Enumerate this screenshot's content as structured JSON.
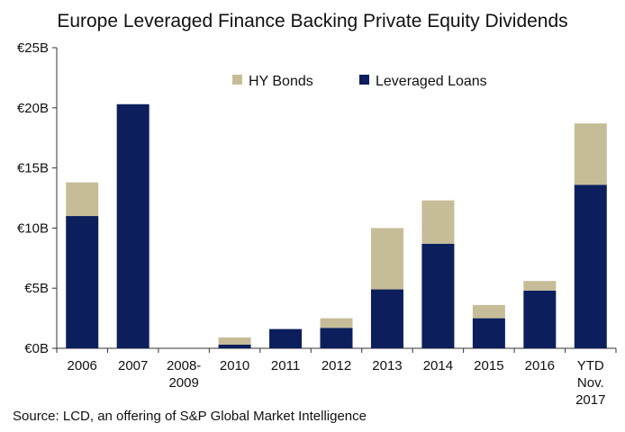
{
  "chart_data": {
    "type": "bar",
    "stacked": true,
    "title": "Europe Leveraged Finance Backing Private Equity Dividends",
    "categories": [
      "2006",
      "2007",
      "2008-2009",
      "2010",
      "2011",
      "2012",
      "2013",
      "2014",
      "2015",
      "2016",
      "YTD Nov. 2017"
    ],
    "category_lines": [
      [
        "2006"
      ],
      [
        "2007"
      ],
      [
        "2008-",
        "2009"
      ],
      [
        "2010"
      ],
      [
        "2011"
      ],
      [
        "2012"
      ],
      [
        "2013"
      ],
      [
        "2014"
      ],
      [
        "2015"
      ],
      [
        "2016"
      ],
      [
        "YTD",
        "Nov.",
        "2017"
      ]
    ],
    "series": [
      {
        "name": "Leveraged Loans",
        "color": "#0c1f5c",
        "values": [
          11.0,
          20.3,
          0,
          0.3,
          1.6,
          1.7,
          4.9,
          8.7,
          2.5,
          4.8,
          13.6
        ]
      },
      {
        "name": "HY Bonds",
        "color": "#c6bd98",
        "values": [
          2.8,
          0,
          0,
          0.6,
          0,
          0.8,
          5.1,
          3.6,
          1.1,
          0.8,
          5.1
        ]
      }
    ],
    "legend": {
      "position": "top-center",
      "order": [
        "HY Bonds",
        "Leveraged Loans"
      ]
    },
    "y_ticks": [
      "€0B",
      "€5B",
      "€10B",
      "€15B",
      "€20B",
      "€25B"
    ],
    "ylim": [
      0,
      25
    ],
    "grid": false,
    "xlabel": "",
    "ylabel": ""
  },
  "source": "Source: LCD, an offering of S&P Global Market Intelligence"
}
